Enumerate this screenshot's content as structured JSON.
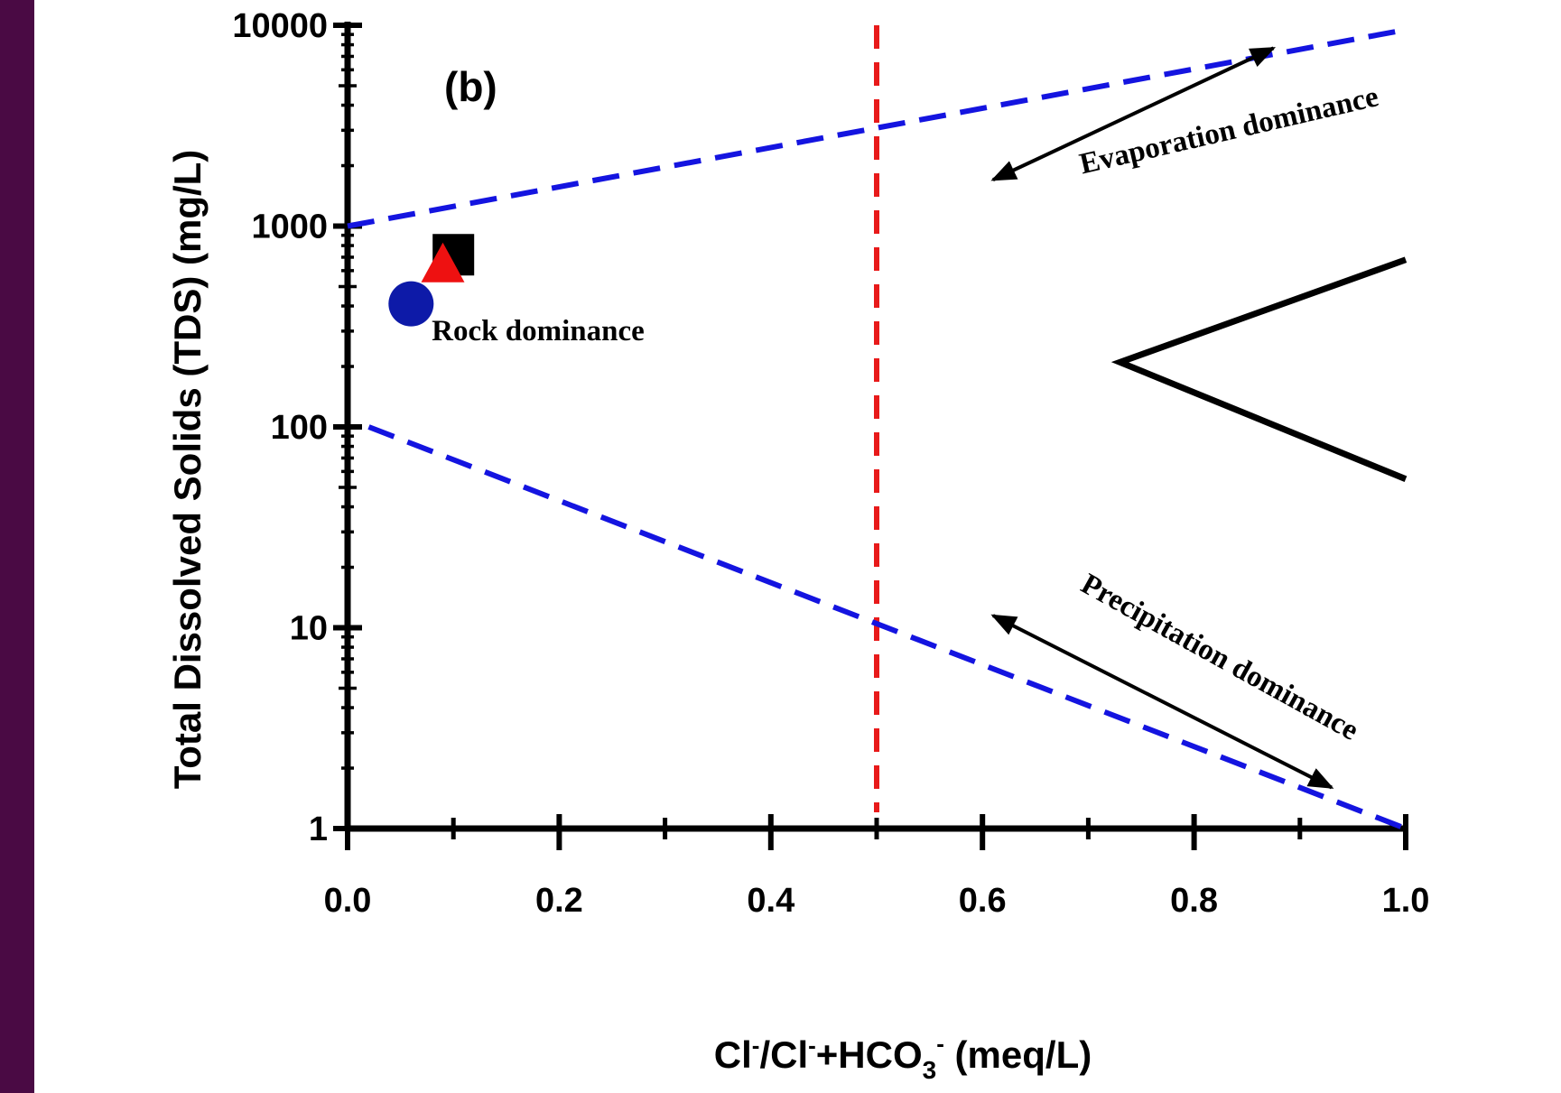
{
  "colors": {
    "left_band": "#4a0a44",
    "boundary_line": "#1414e0",
    "divider_line": "#e81a1a",
    "axis": "#000000",
    "square_marker": "#000000",
    "triangle_marker": "#ee1111",
    "circle_marker": "#0d1aa8"
  },
  "chart_data": {
    "type": "scatter",
    "panel_label": "(b)",
    "xlabel": {
      "base": "Cl",
      "sup1": "-",
      "mid": "/Cl",
      "sup2": "-",
      "mid2": "+HCO",
      "sub": "3",
      "sup3": "-",
      "unit": " (meq/L)"
    },
    "ylabel": "Total Dissolved Solids (TDS) (mg/L)",
    "xlim": [
      0.0,
      1.0
    ],
    "ylim": [
      1,
      10000
    ],
    "y_scale": "log",
    "x_ticks": [
      "0.0",
      "0.2",
      "0.4",
      "0.6",
      "0.8",
      "1.0"
    ],
    "x_tick_values": [
      0.0,
      0.2,
      0.4,
      0.6,
      0.8,
      1.0
    ],
    "y_ticks": [
      "1",
      "10",
      "100",
      "1000",
      "10000"
    ],
    "y_tick_values": [
      1,
      10,
      100,
      1000,
      10000
    ],
    "points": [
      {
        "shape": "square",
        "x": 0.1,
        "y": 720,
        "color": "#000000"
      },
      {
        "shape": "triangle",
        "x": 0.09,
        "y": 620,
        "color": "#ee1111"
      },
      {
        "shape": "circle",
        "x": 0.06,
        "y": 410,
        "color": "#0d1aa8"
      }
    ],
    "boundary_curves": [
      {
        "style": "dashed",
        "color": "#1414e0",
        "points": [
          [
            0.0,
            1000
          ],
          [
            1.0,
            9500
          ]
        ]
      },
      {
        "style": "dashed",
        "color": "#1414e0",
        "points": [
          [
            0.02,
            100
          ],
          [
            1.0,
            1
          ]
        ]
      }
    ],
    "divider": {
      "style": "dashed",
      "color": "#e81a1a",
      "x": 0.5,
      "y_range": [
        1,
        10000
      ]
    },
    "envelope": {
      "color": "#000000",
      "points": [
        [
          1.0,
          680
        ],
        [
          0.73,
          210
        ],
        [
          1.0,
          55
        ]
      ]
    },
    "annotations": [
      {
        "text": "Evaporation dominance",
        "x": 0.835,
        "y": 2700,
        "rotate": -13
      },
      {
        "text": "Rock dominance",
        "x": 0.18,
        "y": 270,
        "rotate": 0
      },
      {
        "text": "Precipitation  dominance",
        "x": 0.82,
        "y": 6.5,
        "rotate": 29
      }
    ],
    "arrows": [
      {
        "from": [
          0.875,
          7700
        ],
        "to": [
          0.61,
          1700
        ]
      },
      {
        "from": [
          0.61,
          11.5
        ],
        "to": [
          0.93,
          1.6
        ]
      }
    ]
  }
}
